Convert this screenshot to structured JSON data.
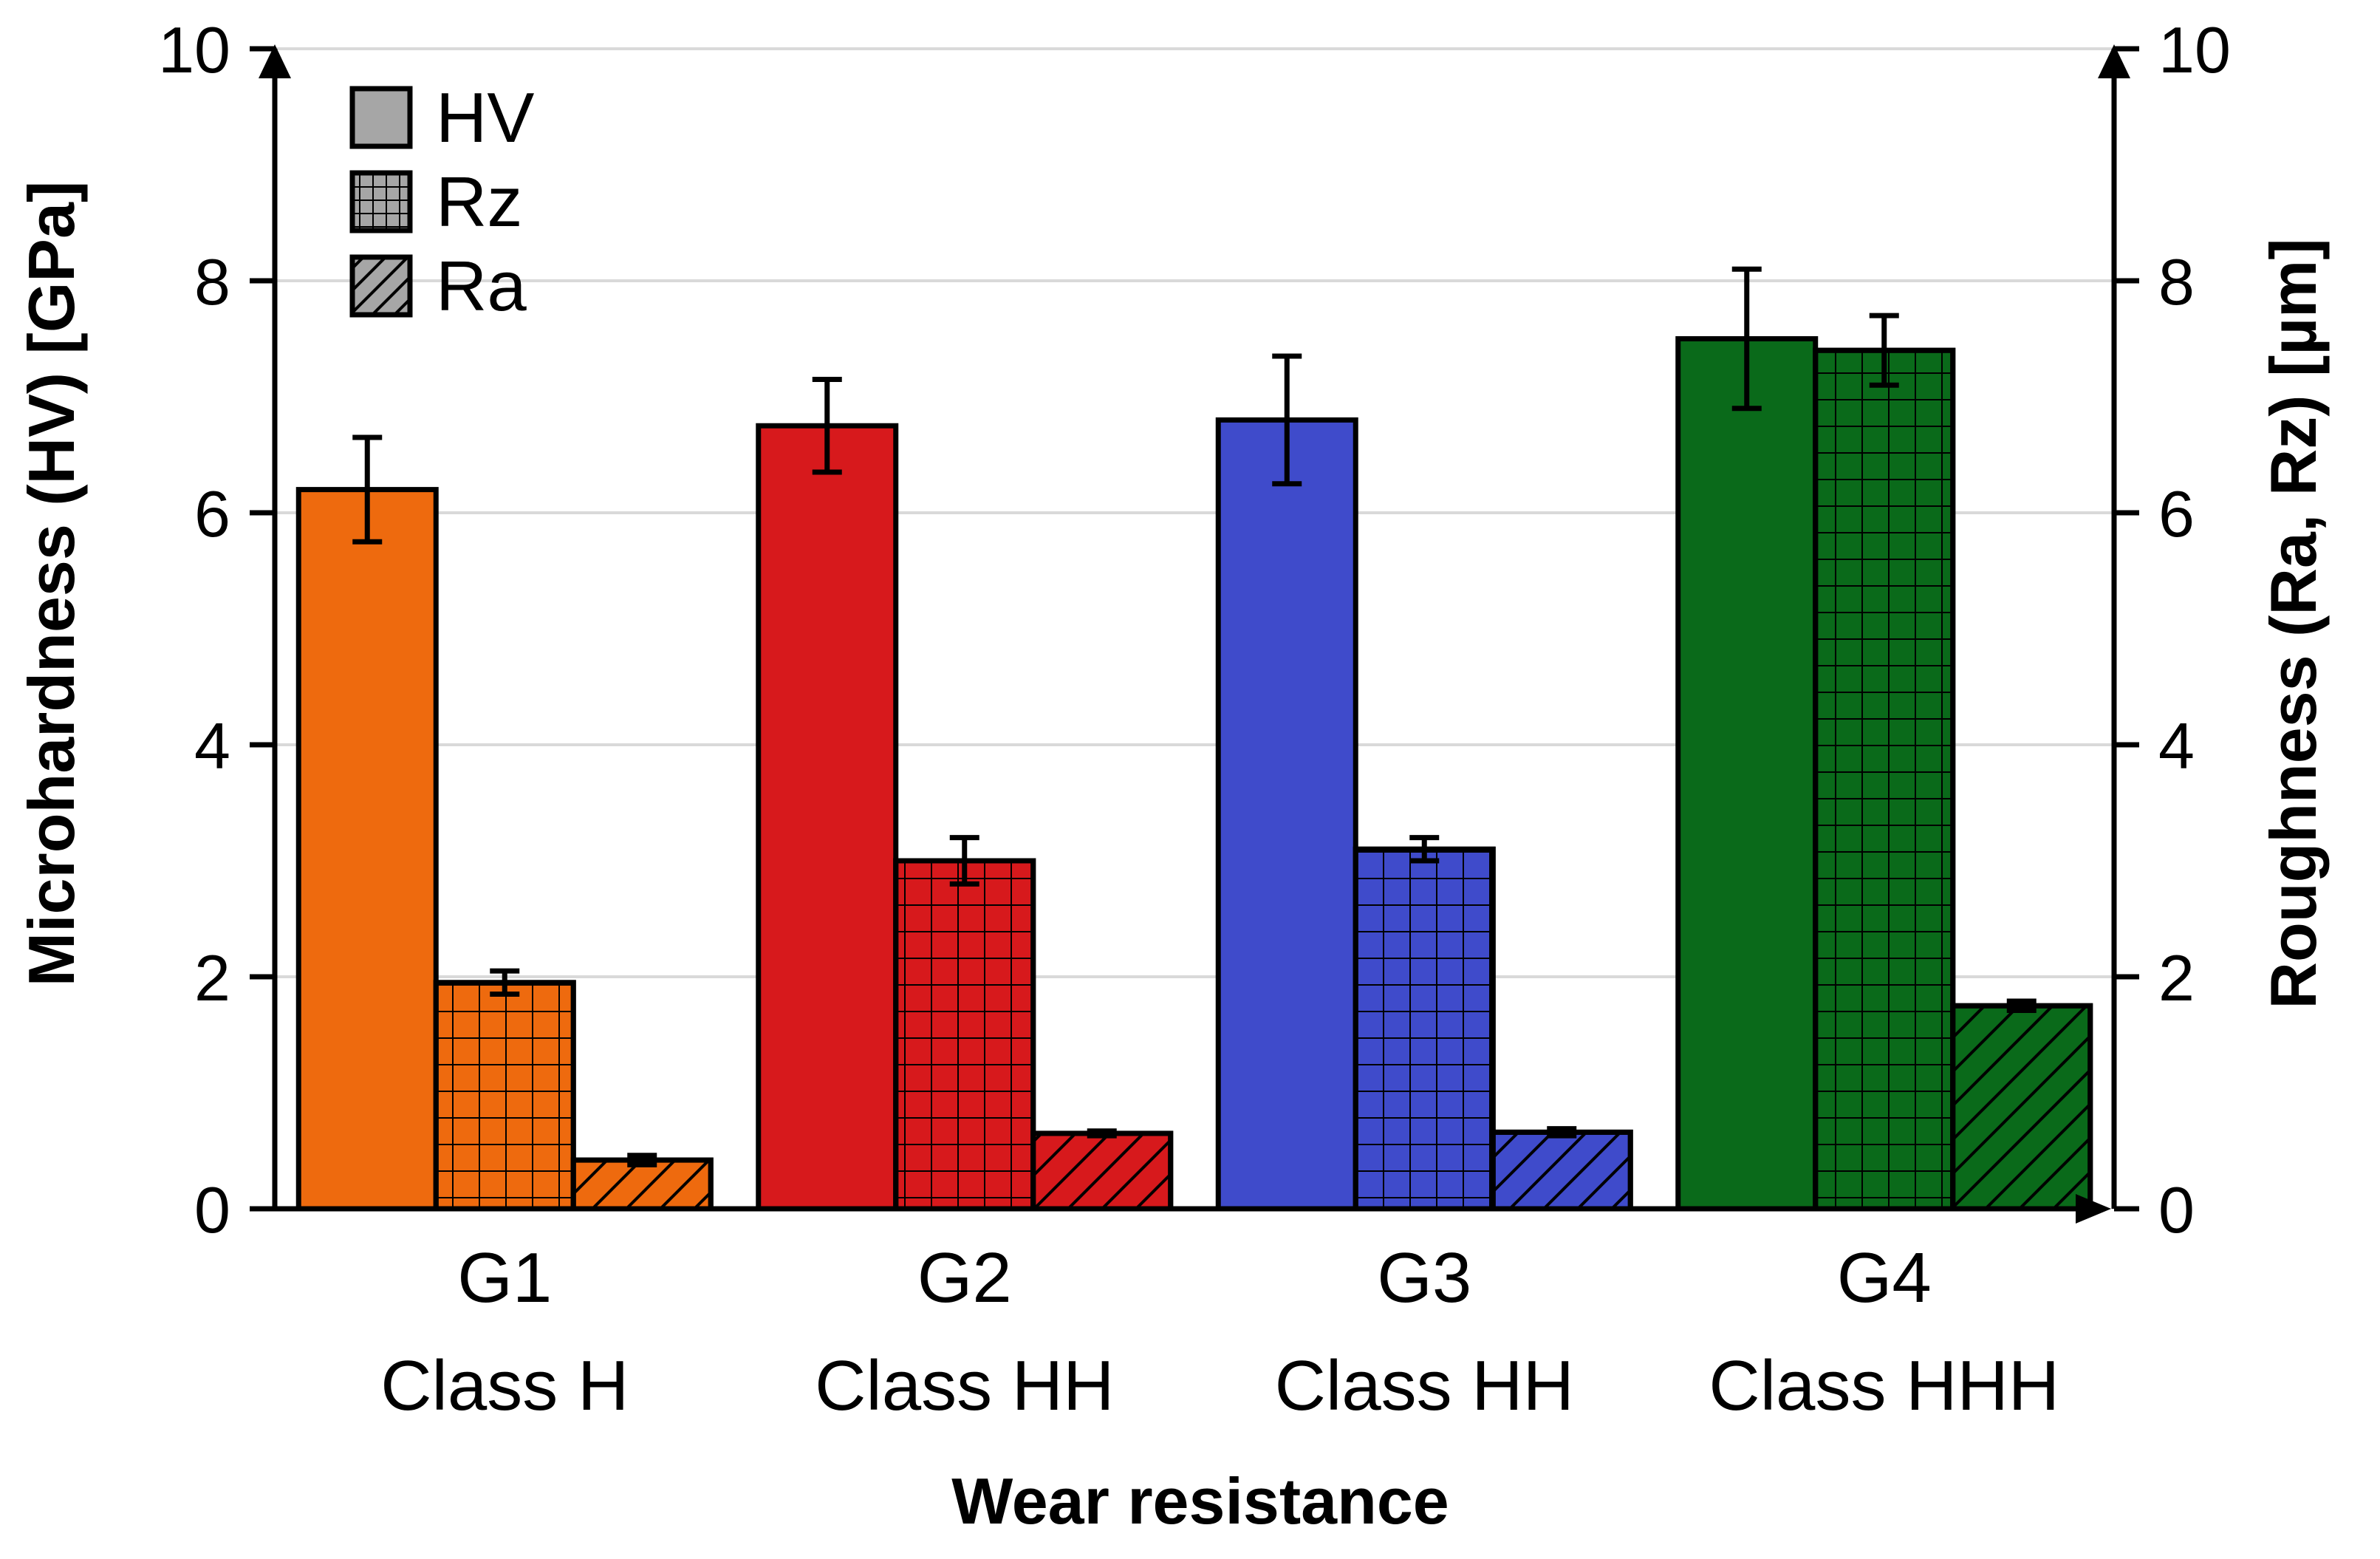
{
  "chart_data": {
    "type": "bar",
    "xlabel": "Wear resistance",
    "ylabel_left": "Microhardness (HV) [GPa]",
    "ylabel_right": "Roughness (Ra, Rz) [µm]",
    "ylim_left": [
      0,
      10
    ],
    "ylim_right": [
      0,
      10
    ],
    "yticks": [
      0,
      2,
      4,
      6,
      8,
      10
    ],
    "grid": true,
    "legend_position": "top-left",
    "categories": [
      {
        "line1": "G1",
        "line2": "Class H",
        "color": "#EE6A0E"
      },
      {
        "line1": "G2",
        "line2": "Class HH",
        "color": "#D7191C"
      },
      {
        "line1": "G3",
        "line2": "Class HH",
        "color": "#3F4BCB"
      },
      {
        "line1": "G4",
        "line2": "Class HHH",
        "color": "#0A6A1A"
      }
    ],
    "series": [
      {
        "name": "HV",
        "pattern": "solid",
        "axis": "left",
        "values": [
          6.2,
          6.75,
          6.8,
          7.5
        ],
        "errors": [
          0.45,
          0.4,
          0.55,
          0.6
        ]
      },
      {
        "name": "Rz",
        "pattern": "grid",
        "axis": "right",
        "values": [
          1.95,
          3.0,
          3.1,
          7.4
        ],
        "errors": [
          0.1,
          0.2,
          0.1,
          0.3
        ]
      },
      {
        "name": "Ra",
        "pattern": "diagonal",
        "axis": "right",
        "values": [
          0.42,
          0.65,
          0.66,
          1.75
        ],
        "errors": [
          0.04,
          0.02,
          0.03,
          0.04
        ]
      }
    ]
  }
}
